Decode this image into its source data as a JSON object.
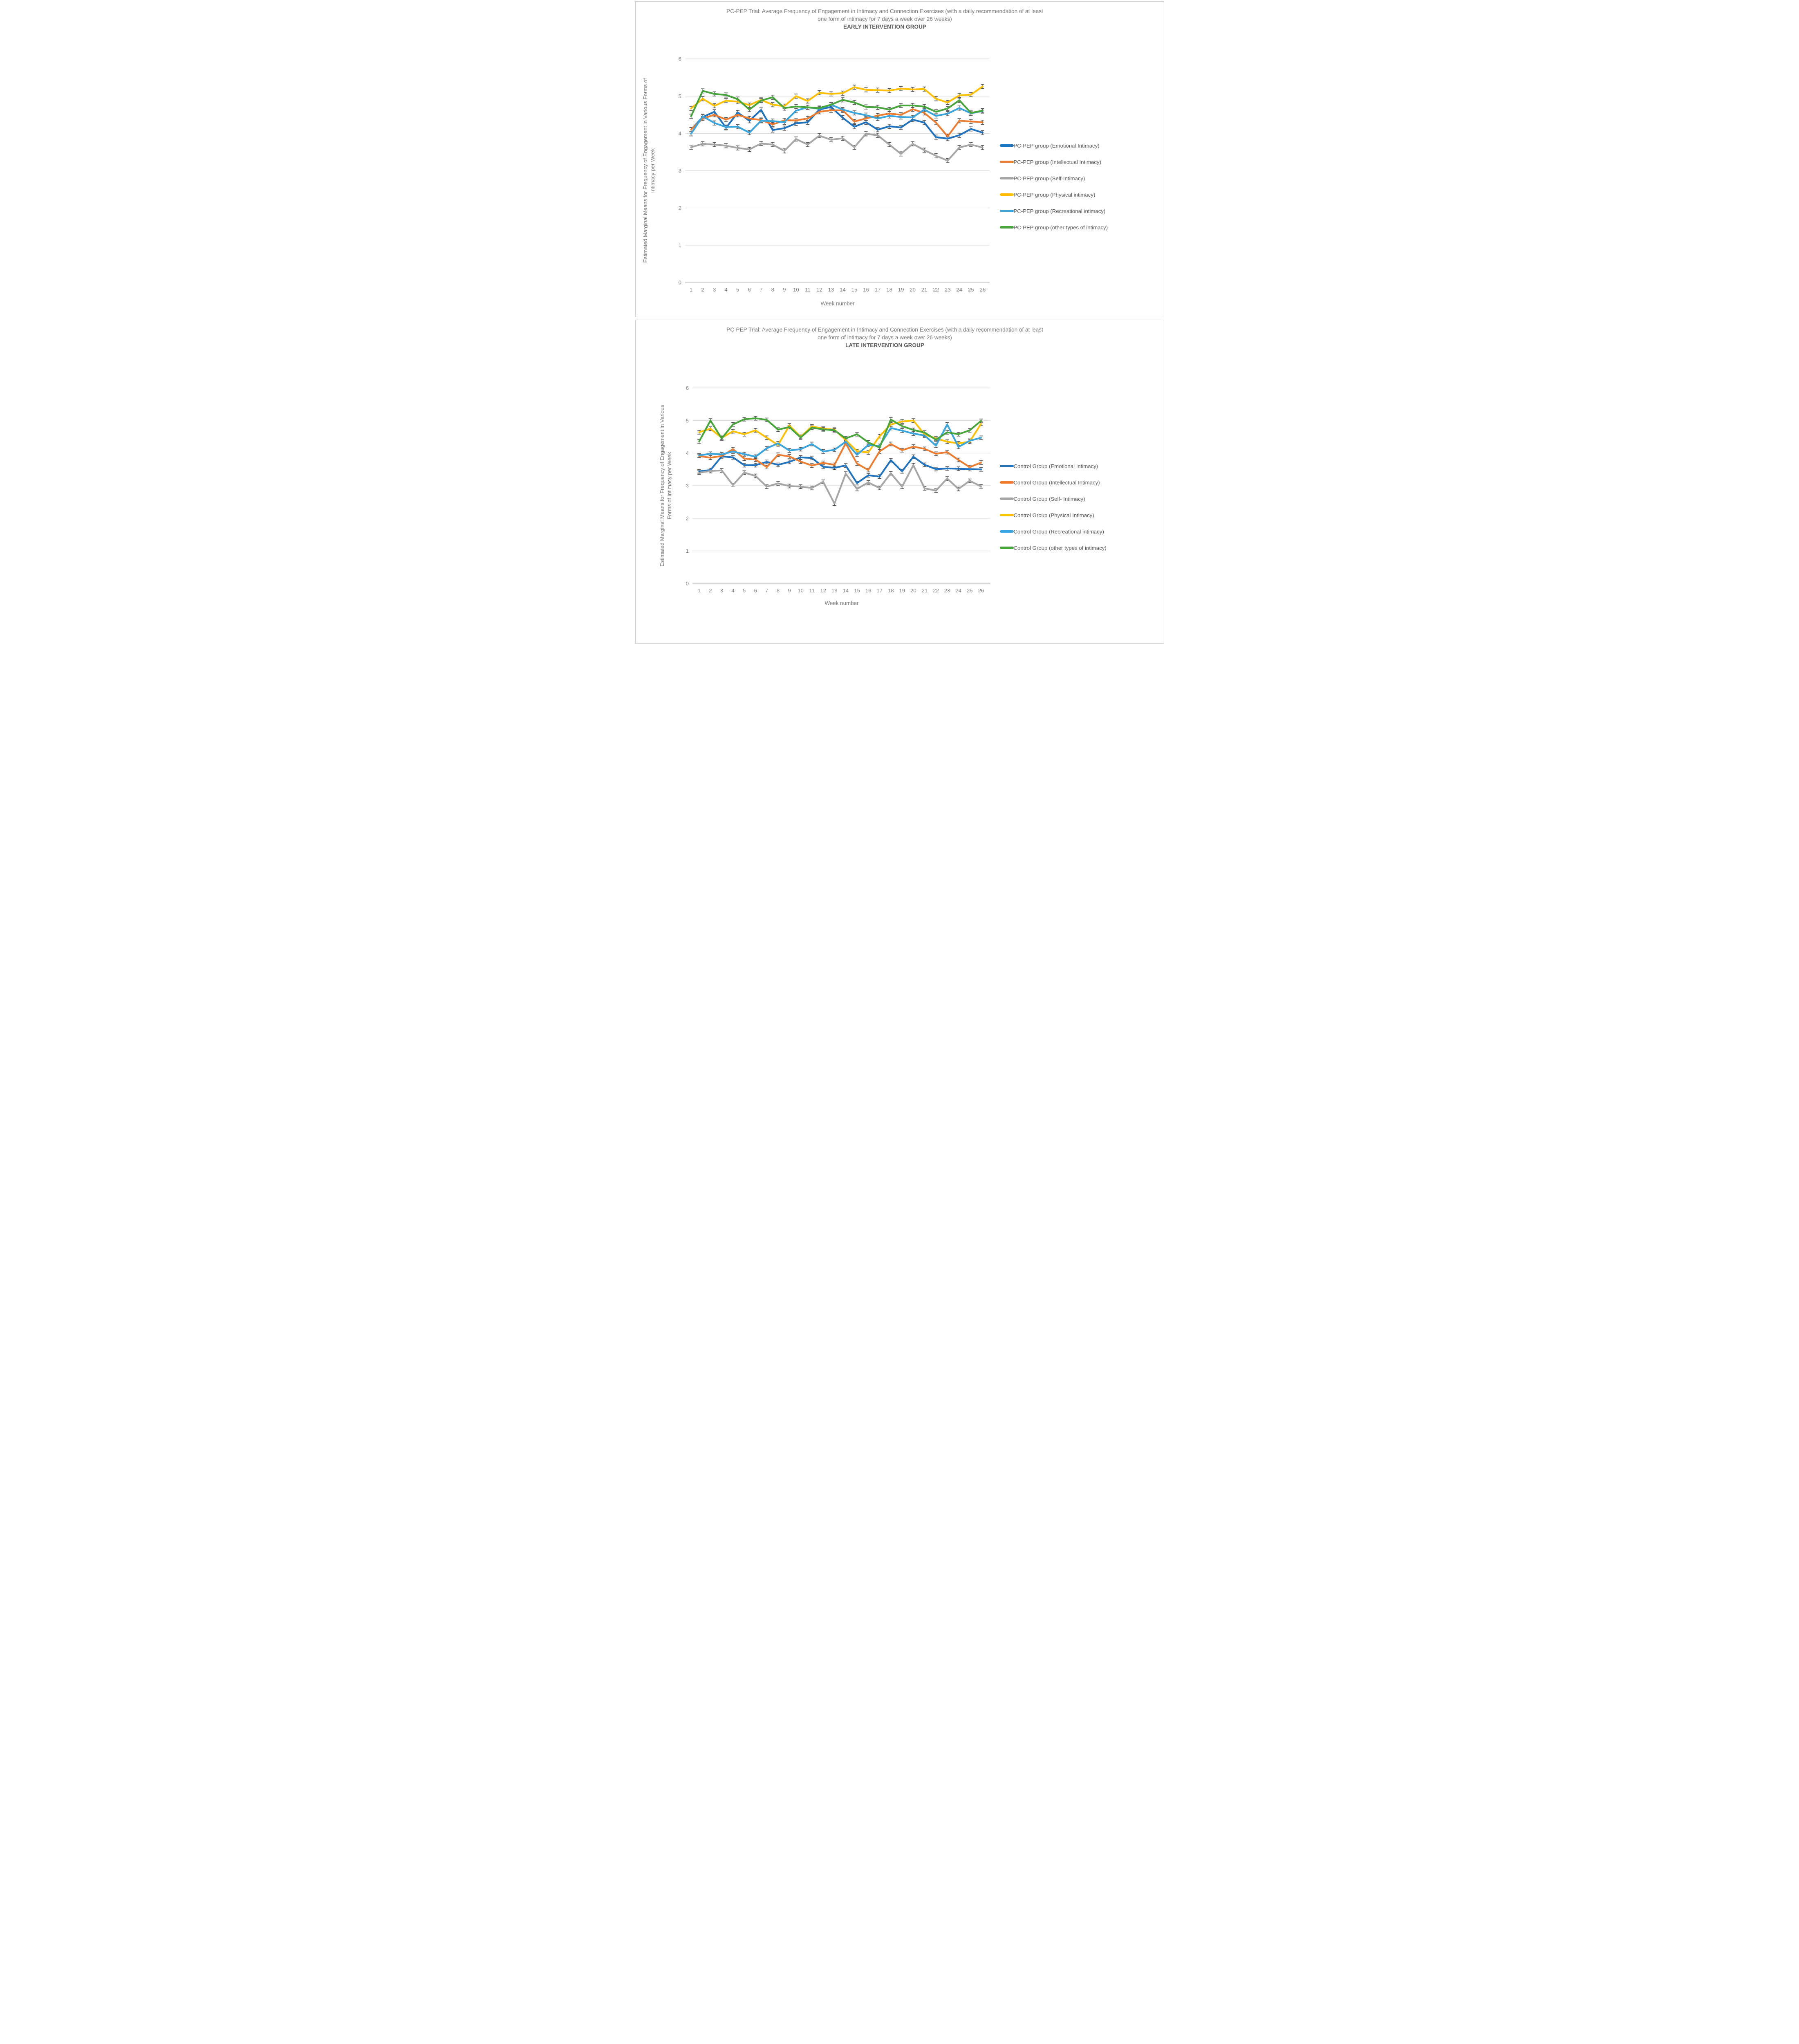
{
  "page": {
    "background": "#FFFFFF",
    "panel_border_color": "#C9C9C9",
    "gridline_color": "#D9D9D9",
    "tick_label_color": "#7F7F7F",
    "title_color": "#7B7B7B",
    "subtitle_bold_color": "#595959",
    "error_bar_color": "#565656"
  },
  "chart_data": [
    {
      "type": "line",
      "title": [
        "PC-PEP Trial: Average Frequency of Engagement in Intimacy and Connection Exercises (with a daily recommendation of at least",
        "one form of intimacy for 7 days a week over 26 weeks)",
        "EARLY  INTERVENTION GROUP"
      ],
      "ylabel": [
        "Estimated Marginal Means for Frequency of Engagement in Various Forms of",
        "Intimacy per Week"
      ],
      "xlabel": "Week number",
      "ylim": [
        0,
        6
      ],
      "y_ticks": [
        0,
        1,
        2,
        3,
        4,
        5,
        6
      ],
      "x": [
        1,
        2,
        3,
        4,
        5,
        6,
        7,
        8,
        9,
        10,
        11,
        12,
        13,
        14,
        15,
        16,
        17,
        18,
        19,
        20,
        21,
        22,
        23,
        24,
        25,
        26
      ],
      "grid": true,
      "legend_position": "right",
      "error_bars": "small whiskers (~±0.05) on every data point",
      "series": [
        {
          "name": "PC-PEP group (Emotional Intimacy)",
          "color": "#2173BE",
          "values": [
            4.1,
            4.44,
            4.58,
            4.15,
            4.56,
            4.34,
            4.63,
            4.09,
            4.14,
            4.27,
            4.3,
            4.64,
            4.71,
            4.42,
            4.18,
            4.3,
            4.1,
            4.19,
            4.16,
            4.37,
            4.29,
            3.9,
            3.86,
            3.95,
            4.12,
            4.02
          ]
        },
        {
          "name": "PC-PEP group (Intellectual Intimacy)",
          "color": "#ED7D31",
          "values": [
            4.1,
            4.4,
            4.5,
            4.37,
            4.5,
            4.4,
            4.36,
            4.24,
            4.35,
            4.35,
            4.4,
            4.58,
            4.62,
            4.62,
            4.32,
            4.4,
            4.48,
            4.53,
            4.5,
            4.65,
            4.55,
            4.29,
            3.92,
            4.34,
            4.32,
            4.3
          ]
        },
        {
          "name": "PC-PEP group (Self-Intimacy)",
          "color": "#A6A6A6",
          "values": [
            3.63,
            3.72,
            3.7,
            3.67,
            3.61,
            3.57,
            3.73,
            3.7,
            3.53,
            3.85,
            3.7,
            3.94,
            3.83,
            3.87,
            3.63,
            3.99,
            3.95,
            3.7,
            3.45,
            3.72,
            3.55,
            3.4,
            3.27,
            3.62,
            3.7,
            3.62
          ]
        },
        {
          "name": "PC-PEP group (Physical intimacy)",
          "color": "#FFC000",
          "values": [
            4.67,
            4.93,
            4.74,
            4.88,
            4.85,
            4.76,
            4.9,
            4.77,
            4.73,
            5.0,
            4.87,
            5.09,
            5.06,
            5.08,
            5.24,
            5.17,
            5.16,
            5.15,
            5.2,
            5.18,
            5.19,
            4.93,
            4.83,
            5.02,
            5.04,
            5.26
          ]
        },
        {
          "name": "PC-PEP group (Recreational intimacy)",
          "color": "#3AA4DC",
          "values": [
            3.99,
            4.46,
            4.28,
            4.17,
            4.18,
            4.02,
            4.34,
            4.33,
            4.3,
            4.61,
            4.7,
            4.66,
            4.77,
            4.64,
            4.55,
            4.49,
            4.4,
            4.47,
            4.44,
            4.43,
            4.64,
            4.47,
            4.53,
            4.68,
            4.54,
            4.6
          ]
        },
        {
          "name": "PC-PEP group (other types of intimacy)",
          "color": "#48A53C",
          "values": [
            4.46,
            5.14,
            5.06,
            5.03,
            4.92,
            4.64,
            4.88,
            4.97,
            4.68,
            4.72,
            4.7,
            4.68,
            4.77,
            4.9,
            4.83,
            4.71,
            4.7,
            4.64,
            4.75,
            4.75,
            4.72,
            4.58,
            4.67,
            4.89,
            4.55,
            4.61
          ]
        }
      ]
    },
    {
      "type": "line",
      "title": [
        "PC-PEP Trial: Average Frequency of Engagement in Intimacy and Connection Exercises (with a daily recommendation of at least",
        "one form of intimacy for 7 days a week over 26 weeks)",
        "LATE INTERVENTION GROUP"
      ],
      "ylabel": [
        "Estimated Marginal Means for Frequency of Engagement in Various",
        "Forms of Intimacy per Week"
      ],
      "xlabel": "Week number",
      "ylim": [
        0,
        6
      ],
      "y_ticks": [
        0,
        1,
        2,
        3,
        4,
        5,
        6
      ],
      "x": [
        1,
        2,
        3,
        4,
        5,
        6,
        7,
        8,
        9,
        10,
        11,
        12,
        13,
        14,
        15,
        16,
        17,
        18,
        19,
        20,
        21,
        22,
        23,
        24,
        25,
        26
      ],
      "grid": true,
      "legend_position": "right",
      "error_bars": "small whiskers (~±0.05) on every data point",
      "series": [
        {
          "name": "Control Group (Emotional Intimacy)",
          "color": "#2173BE",
          "values": [
            3.44,
            3.48,
            3.9,
            3.87,
            3.63,
            3.63,
            3.73,
            3.64,
            3.73,
            3.87,
            3.85,
            3.58,
            3.55,
            3.62,
            3.08,
            3.32,
            3.28,
            3.78,
            3.44,
            3.89,
            3.64,
            3.51,
            3.53,
            3.52,
            3.51,
            3.5
          ]
        },
        {
          "name": "Control Group (Intellectual Intimacy)",
          "color": "#ED7D31",
          "values": [
            3.91,
            3.86,
            3.91,
            4.12,
            3.83,
            3.8,
            3.57,
            3.95,
            3.9,
            3.74,
            3.62,
            3.7,
            3.64,
            4.3,
            3.68,
            3.48,
            4.05,
            4.28,
            4.09,
            4.2,
            4.13,
            3.98,
            4.03,
            3.79,
            3.57,
            3.71
          ]
        },
        {
          "name": "Control Group (Self- Intimacy)",
          "color": "#A6A6A6",
          "values": [
            3.4,
            3.45,
            3.47,
            3.02,
            3.4,
            3.3,
            2.97,
            3.07,
            2.99,
            2.97,
            2.93,
            3.12,
            2.45,
            3.37,
            2.9,
            3.1,
            2.93,
            3.38,
            2.97,
            3.63,
            2.92,
            2.85,
            3.22,
            2.9,
            3.15,
            2.98
          ]
        },
        {
          "name": "Control Group (Physical Intimacy)",
          "color": "#FFC000",
          "values": [
            4.64,
            4.75,
            4.47,
            4.67,
            4.58,
            4.7,
            4.47,
            4.25,
            4.85,
            4.5,
            4.82,
            4.75,
            4.72,
            4.4,
            4.06,
            4.02,
            4.52,
            4.88,
            4.97,
            5.0,
            4.57,
            4.45,
            4.35,
            4.3,
            4.35,
            4.9
          ]
        },
        {
          "name": "Control Group (Recreational intimacy)",
          "color": "#3AA4DC",
          "values": [
            3.93,
            3.98,
            3.96,
            4.05,
            3.97,
            3.89,
            4.15,
            4.3,
            4.08,
            4.12,
            4.28,
            4.05,
            4.1,
            4.35,
            3.95,
            4.25,
            4.22,
            4.77,
            4.69,
            4.6,
            4.54,
            4.23,
            4.88,
            4.19,
            4.38,
            4.47
          ]
        },
        {
          "name": "Control Group (other types of intimacy)",
          "color": "#48A53C",
          "values": [
            4.36,
            5.0,
            4.45,
            4.88,
            5.04,
            5.07,
            5.02,
            4.72,
            4.8,
            4.48,
            4.78,
            4.73,
            4.7,
            4.45,
            4.58,
            4.33,
            4.17,
            5.03,
            4.83,
            4.71,
            4.63,
            4.41,
            4.64,
            4.58,
            4.7,
            4.99
          ]
        }
      ]
    }
  ]
}
